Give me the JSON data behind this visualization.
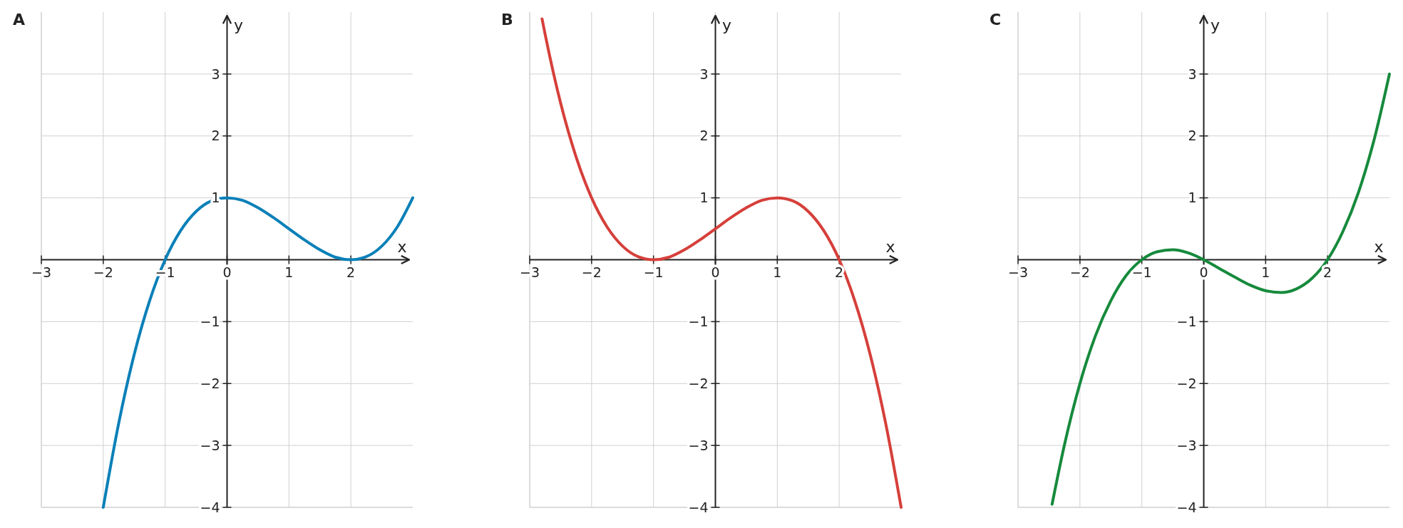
{
  "chart_data": [
    {
      "type": "line",
      "title": "A",
      "xlabel": "x",
      "ylabel": "y",
      "xlim": [
        -3,
        3
      ],
      "ylim": [
        -4,
        4
      ],
      "xticks": [
        -3,
        -2,
        -1,
        0,
        1,
        2
      ],
      "yticks": [
        -4,
        -3,
        -2,
        -1,
        1,
        2,
        3
      ],
      "grid": true,
      "series": [
        {
          "color": "#0a80b8",
          "x": [
            -2,
            -1.75,
            -1.5,
            -1.25,
            -1,
            -0.75,
            -0.5,
            -0.25,
            0,
            0.25,
            0.5,
            0.75,
            1,
            1.25,
            1.5,
            1.75,
            2,
            2.25,
            2.5,
            2.75,
            3
          ],
          "values": [
            -4,
            -2.64,
            -1.53,
            -0.66,
            0,
            0.47,
            0.78,
            0.95,
            1,
            0.96,
            0.84,
            0.68,
            0.5,
            0.32,
            0.16,
            0.04,
            0,
            0.05,
            0.22,
            0.53,
            1
          ]
        }
      ]
    },
    {
      "type": "line",
      "title": "B",
      "xlabel": "x",
      "ylabel": "y",
      "xlim": [
        -3,
        3
      ],
      "ylim": [
        -4,
        4
      ],
      "xticks": [
        -3,
        -2,
        -1,
        0,
        1,
        2
      ],
      "yticks": [
        -4,
        -3,
        -2,
        -1,
        1,
        2,
        3
      ],
      "grid": true,
      "series": [
        {
          "color": "#d63f3a",
          "x": [
            -2.8,
            -2.75,
            -2.5,
            -2.25,
            -2,
            -1.75,
            -1.5,
            -1.25,
            -1,
            -0.75,
            -0.5,
            -0.25,
            0,
            0.25,
            0.5,
            0.75,
            1,
            1.25,
            1.5,
            1.75,
            2,
            2.25,
            2.5,
            2.75,
            3
          ],
          "values": [
            3.89,
            3.64,
            2.53,
            1.66,
            1,
            0.53,
            0.22,
            0.05,
            0,
            0.04,
            0.16,
            0.32,
            0.5,
            0.68,
            0.84,
            0.96,
            1,
            0.95,
            0.78,
            0.47,
            0,
            -0.66,
            -1.53,
            -2.64,
            -4
          ]
        }
      ]
    },
    {
      "type": "line",
      "title": "C",
      "xlabel": "x",
      "ylabel": "y",
      "xlim": [
        -3,
        3
      ],
      "ylim": [
        -4,
        4
      ],
      "xticks": [
        -3,
        -2,
        -1,
        0,
        1,
        2
      ],
      "yticks": [
        -4,
        -3,
        -2,
        -1,
        1,
        2,
        3
      ],
      "grid": true,
      "series": [
        {
          "color": "#168a3c",
          "x": [
            -2.45,
            -2.25,
            -2,
            -1.75,
            -1.5,
            -1.25,
            -1,
            -0.75,
            -0.5,
            -0.25,
            0,
            0.25,
            0.5,
            0.75,
            1,
            1.25,
            1.5,
            1.75,
            2,
            2.25,
            2.5,
            2.75,
            3
          ],
          "values": [
            -3.95,
            -2.99,
            -2,
            -1.23,
            -0.66,
            -0.25,
            0,
            0.13,
            0.16,
            0.11,
            0,
            -0.14,
            -0.28,
            -0.41,
            -0.5,
            -0.53,
            -0.47,
            -0.3,
            0,
            0.46,
            1.09,
            1.93,
            3
          ]
        }
      ]
    }
  ]
}
